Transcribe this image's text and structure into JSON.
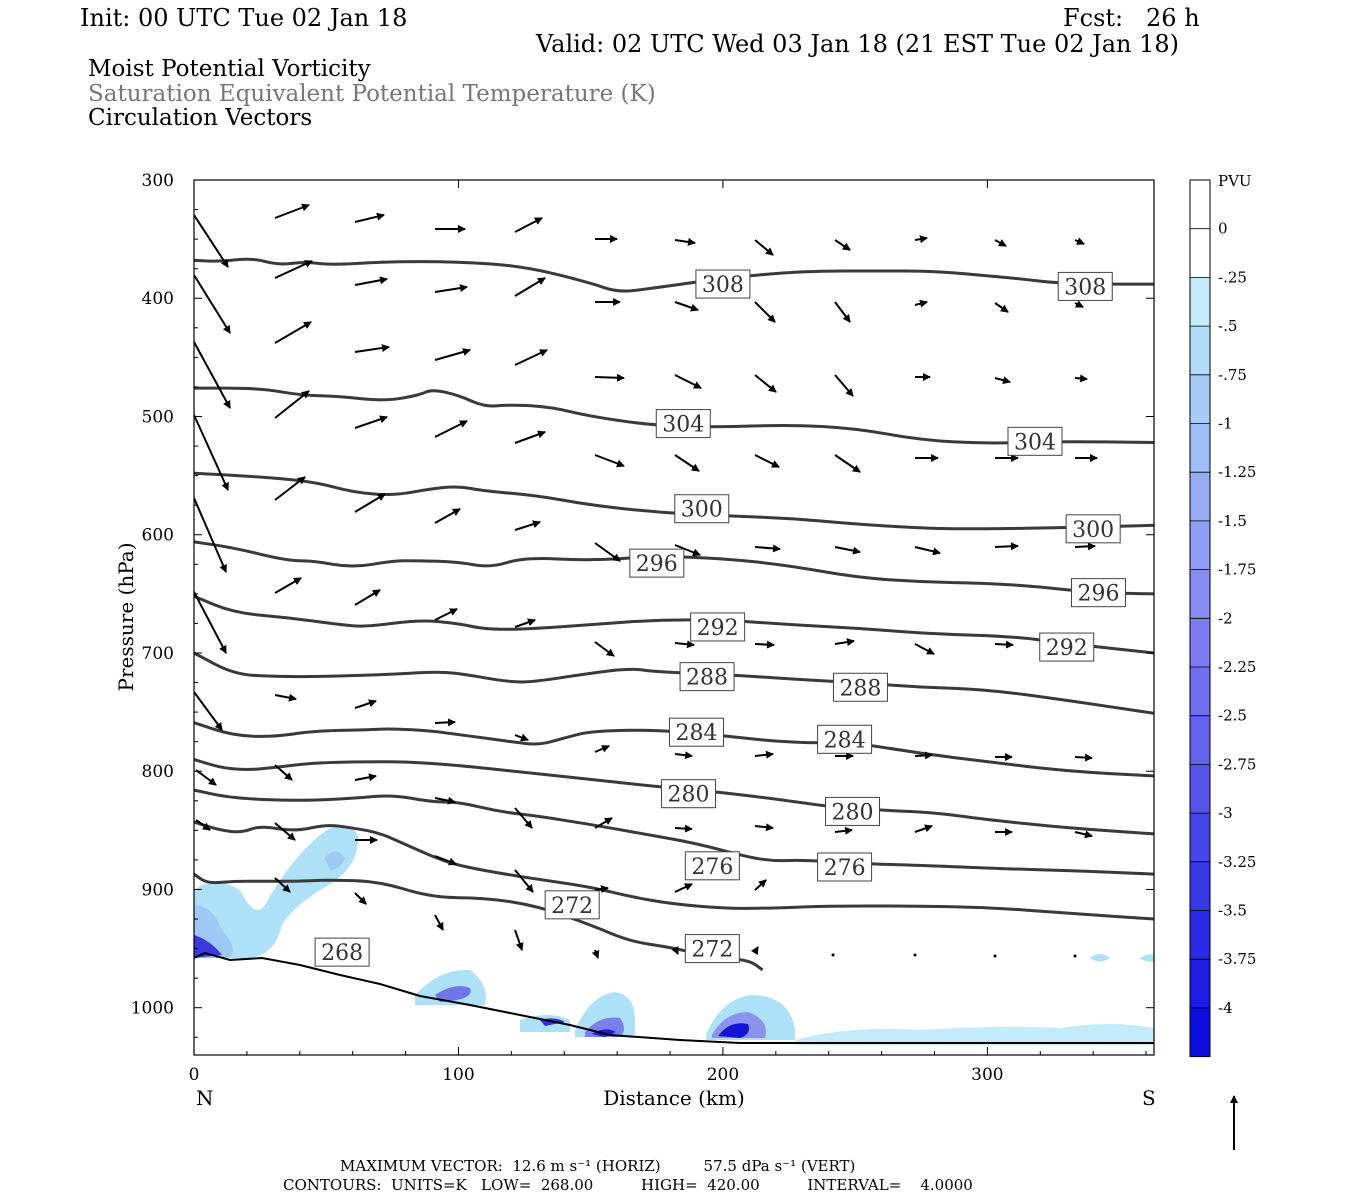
{
  "header": {
    "init": "Init: 00 UTC Tue 02 Jan 18",
    "fcst": "Fcst:   26 h",
    "valid": "Valid: 02 UTC Wed 03 Jan 18 (21 EST Tue 02 Jan 18)",
    "title_lines": [
      "Moist Potential Vorticity",
      "Saturation Equivalent Potential Temperature (K)",
      "Circulation Vectors"
    ]
  },
  "colors": {
    "contour": "#3a3a3a",
    "pv_light": "#aee1f8",
    "pv_mid": "#9aa8f0",
    "pv_deep": "#2222dd",
    "title_gray": "#777777"
  },
  "chart_data": {
    "type": "cross-section",
    "xlabel": "Distance (km)",
    "ylabel": "Pressure (hPa)",
    "xlim": [
      0,
      363
    ],
    "ylim": [
      300,
      1040
    ],
    "x_ticks": [
      "0",
      "100",
      "200",
      "300"
    ],
    "y_ticks": [
      "300",
      "400",
      "500",
      "600",
      "700",
      "800",
      "900",
      "1000"
    ],
    "x_end_labels": {
      "left": "N",
      "right": "S"
    },
    "colorbar": {
      "unit": "PVU",
      "labels": [
        "0",
        "-.25",
        "-.5",
        "-.75",
        "-1",
        "-1.25",
        "-1.5",
        "-1.75",
        "-2",
        "-2.25",
        "-2.5",
        "-2.75",
        "-3",
        "-3.25",
        "-3.5",
        "-3.75",
        "-4"
      ],
      "colors": [
        "#ffffff",
        "#ffffff",
        "#c4ebfa",
        "#b3dcf8",
        "#a6ccf6",
        "#9ebcf5",
        "#96acf3",
        "#8e9cf2",
        "#868cf1",
        "#7c7cf0",
        "#7070ee",
        "#6262ec",
        "#5454ea",
        "#4646e8",
        "#3838e6",
        "#2a2ae4",
        "#1c1ce2",
        "#0e0ee0"
      ]
    },
    "contours": [
      {
        "level": 308,
        "labels": [
          "308",
          "308"
        ],
        "pts": [
          [
            0,
            368
          ],
          [
            10,
            369
          ],
          [
            22,
            366
          ],
          [
            32,
            372
          ],
          [
            42,
            369
          ],
          [
            52,
            372
          ],
          [
            72,
            369
          ],
          [
            100,
            369
          ],
          [
            125,
            373
          ],
          [
            150,
            387
          ],
          [
            160,
            395
          ],
          [
            172,
            392
          ],
          [
            200,
            383
          ],
          [
            230,
            377
          ],
          [
            260,
            377
          ],
          [
            280,
            377
          ],
          [
            310,
            383
          ],
          [
            330,
            388
          ],
          [
            363,
            388
          ]
        ]
      },
      {
        "level": 304,
        "labels": [
          "304",
          "304"
        ],
        "pts": [
          [
            0,
            476
          ],
          [
            25,
            476
          ],
          [
            40,
            482
          ],
          [
            55,
            483
          ],
          [
            72,
            487
          ],
          [
            85,
            482
          ],
          [
            90,
            477
          ],
          [
            100,
            482
          ],
          [
            110,
            492
          ],
          [
            120,
            490
          ],
          [
            135,
            492
          ],
          [
            150,
            500
          ],
          [
            175,
            508
          ],
          [
            200,
            509
          ],
          [
            225,
            507
          ],
          [
            250,
            510
          ],
          [
            275,
            520
          ],
          [
            300,
            523
          ],
          [
            325,
            521
          ],
          [
            363,
            522
          ]
        ]
      },
      {
        "level": 300,
        "labels": [
          "300",
          "300"
        ],
        "pts": [
          [
            0,
            548
          ],
          [
            25,
            551
          ],
          [
            45,
            555
          ],
          [
            60,
            564
          ],
          [
            75,
            567
          ],
          [
            90,
            561
          ],
          [
            100,
            559
          ],
          [
            110,
            563
          ],
          [
            130,
            567
          ],
          [
            150,
            575
          ],
          [
            175,
            581
          ],
          [
            200,
            584
          ],
          [
            225,
            586
          ],
          [
            250,
            591
          ],
          [
            280,
            595
          ],
          [
            300,
            595
          ],
          [
            330,
            594
          ],
          [
            363,
            592
          ]
        ]
      },
      {
        "level": 296,
        "labels": [
          "296",
          "296"
        ],
        "pts": [
          [
            0,
            606
          ],
          [
            15,
            611
          ],
          [
            35,
            622
          ],
          [
            45,
            622
          ],
          [
            60,
            628
          ],
          [
            75,
            622
          ],
          [
            85,
            622
          ],
          [
            100,
            623
          ],
          [
            112,
            628
          ],
          [
            125,
            619
          ],
          [
            150,
            622
          ],
          [
            175,
            618
          ],
          [
            200,
            620
          ],
          [
            225,
            626
          ],
          [
            250,
            636
          ],
          [
            275,
            640
          ],
          [
            300,
            641
          ],
          [
            320,
            644
          ],
          [
            340,
            649
          ],
          [
            363,
            650
          ]
        ]
      },
      {
        "level": 292,
        "labels": [
          "292",
          "292"
        ],
        "pts": [
          [
            0,
            652
          ],
          [
            15,
            666
          ],
          [
            35,
            670
          ],
          [
            55,
            676
          ],
          [
            65,
            678
          ],
          [
            85,
            672
          ],
          [
            100,
            675
          ],
          [
            110,
            680
          ],
          [
            125,
            680
          ],
          [
            150,
            676
          ],
          [
            175,
            672
          ],
          [
            200,
            672
          ],
          [
            225,
            676
          ],
          [
            250,
            679
          ],
          [
            280,
            684
          ],
          [
            310,
            686
          ],
          [
            330,
            692
          ],
          [
            363,
            700
          ]
        ]
      },
      {
        "level": 288,
        "labels": [
          "288",
          "288"
        ],
        "pts": [
          [
            0,
            700
          ],
          [
            15,
            718
          ],
          [
            30,
            720
          ],
          [
            50,
            720
          ],
          [
            75,
            718
          ],
          [
            90,
            716
          ],
          [
            100,
            717
          ],
          [
            120,
            725
          ],
          [
            130,
            724
          ],
          [
            150,
            717
          ],
          [
            165,
            713
          ],
          [
            175,
            716
          ],
          [
            200,
            718
          ],
          [
            225,
            722
          ],
          [
            250,
            725
          ],
          [
            275,
            729
          ],
          [
            300,
            731
          ],
          [
            330,
            740
          ],
          [
            363,
            751
          ]
        ]
      },
      {
        "level": 284,
        "labels": [
          "284",
          "284"
        ],
        "pts": [
          [
            0,
            759
          ],
          [
            15,
            770
          ],
          [
            30,
            771
          ],
          [
            45,
            766
          ],
          [
            65,
            765
          ],
          [
            75,
            764
          ],
          [
            90,
            766
          ],
          [
            100,
            769
          ],
          [
            110,
            772
          ],
          [
            120,
            775
          ],
          [
            130,
            778
          ],
          [
            140,
            772
          ],
          [
            150,
            766
          ],
          [
            175,
            765
          ],
          [
            200,
            770
          ],
          [
            225,
            776
          ],
          [
            250,
            776
          ],
          [
            275,
            785
          ],
          [
            300,
            792
          ],
          [
            330,
            800
          ],
          [
            363,
            804
          ]
        ]
      },
      {
        "level": 280,
        "labels": [
          "280",
          "280"
        ],
        "pts": [
          [
            0,
            790
          ],
          [
            10,
            797
          ],
          [
            20,
            799
          ],
          [
            30,
            797
          ],
          [
            45,
            793
          ],
          [
            65,
            792
          ],
          [
            80,
            792
          ],
          [
            100,
            795
          ],
          [
            125,
            801
          ],
          [
            150,
            807
          ],
          [
            175,
            813
          ],
          [
            200,
            818
          ],
          [
            225,
            825
          ],
          [
            240,
            830
          ],
          [
            260,
            833
          ],
          [
            280,
            835
          ],
          [
            300,
            841
          ],
          [
            330,
            848
          ],
          [
            363,
            853
          ]
        ]
      },
      {
        "level": 276,
        "labels": [
          "276",
          "276"
        ],
        "pts": [
          [
            0,
            816
          ],
          [
            15,
            823
          ],
          [
            40,
            825
          ],
          [
            60,
            823
          ],
          [
            75,
            820
          ],
          [
            90,
            826
          ],
          [
            100,
            826
          ],
          [
            115,
            834
          ],
          [
            130,
            838
          ],
          [
            150,
            845
          ],
          [
            170,
            853
          ],
          [
            190,
            861
          ],
          [
            210,
            873
          ],
          [
            220,
            876
          ],
          [
            230,
            875
          ],
          [
            250,
            878
          ],
          [
            280,
            880
          ],
          [
            300,
            882
          ],
          [
            330,
            884
          ],
          [
            363,
            887
          ]
        ]
      },
      {
        "level": 272,
        "labels": [
          "272",
          "272"
        ],
        "pts": [
          [
            0,
            843
          ],
          [
            10,
            850
          ],
          [
            18,
            852
          ],
          [
            25,
            846
          ],
          [
            38,
            851
          ],
          [
            50,
            845
          ],
          [
            60,
            848
          ],
          [
            70,
            852
          ],
          [
            80,
            862
          ],
          [
            90,
            872
          ],
          [
            100,
            880
          ],
          [
            120,
            888
          ],
          [
            135,
            893
          ],
          [
            150,
            898
          ],
          [
            165,
            906
          ],
          [
            180,
            912
          ],
          [
            200,
            916
          ],
          [
            215,
            916
          ],
          [
            240,
            914
          ],
          [
            270,
            914
          ],
          [
            300,
            915
          ],
          [
            330,
            920
          ],
          [
            363,
            925
          ]
        ]
      },
      {
        "level": 268,
        "labels": [
          "268"
        ],
        "pts": [
          [
            0,
            887
          ],
          [
            5,
            895
          ],
          [
            15,
            893
          ],
          [
            25,
            893
          ],
          [
            40,
            893
          ],
          [
            50,
            892
          ],
          [
            70,
            893
          ],
          [
            90,
            907
          ],
          [
            110,
            907
          ],
          [
            130,
            914
          ],
          [
            150,
            930
          ],
          [
            165,
            944
          ],
          [
            180,
            949
          ],
          [
            188,
            953
          ],
          [
            200,
            958
          ],
          [
            210,
            960
          ],
          [
            215,
            968
          ]
        ]
      }
    ],
    "pv_note": "blue shading marks negative moist potential vorticity near the surface"
  },
  "footer": {
    "line1": "MAXIMUM VECTOR:  12.6 m s⁻¹ (HORIZ)         57.5 dPa s⁻¹ (VERT)",
    "line2": "CONTOURS:  UNITS=K   LOW=  268.00          HIGH=  420.00          INTERVAL=    4.0000"
  }
}
